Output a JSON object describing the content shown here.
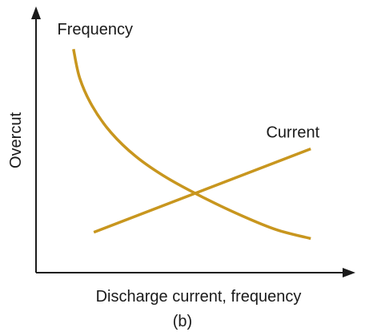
{
  "chart_data": {
    "type": "line",
    "title": "",
    "xlabel": "Discharge current, frequency",
    "ylabel": "Overcut",
    "caption": "(b)",
    "qualitative": true,
    "xlim": [
      0,
      10
    ],
    "ylim": [
      0,
      10
    ],
    "grid": false,
    "series": [
      {
        "name": "Frequency",
        "label": "Frequency",
        "color": "#c8961e",
        "x": [
          1.2,
          1.4,
          1.8,
          2.4,
          3.2,
          4.2,
          5.4,
          6.6,
          7.7,
          8.8
        ],
        "y": [
          8.85,
          7.7,
          6.6,
          5.55,
          4.6,
          3.75,
          2.95,
          2.25,
          1.7,
          1.35
        ]
      },
      {
        "name": "Current",
        "label": "Current",
        "color": "#c8961e",
        "x": [
          1.85,
          8.8
        ],
        "y": [
          1.6,
          4.9
        ]
      }
    ]
  }
}
